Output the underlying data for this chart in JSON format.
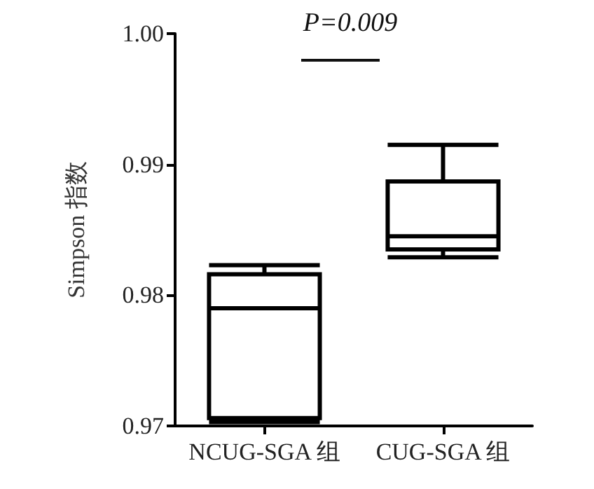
{
  "chart_data": {
    "type": "box",
    "ylabel": "Simpson 指数",
    "categories": [
      "NCUG-SGA 组",
      "CUG-SGA 组"
    ],
    "boxes": [
      {
        "low": 0.9703,
        "q1": 0.9706,
        "median": 0.979,
        "q3": 0.9816,
        "high": 0.9823
      },
      {
        "low": 0.9829,
        "q1": 0.9835,
        "median": 0.9845,
        "q3": 0.9887,
        "high": 0.9915
      }
    ],
    "color": "#000000",
    "ylim": [
      0.97,
      1.0
    ],
    "yticks": [
      0.97,
      0.98,
      0.99,
      {
        "value": 1,
        "label": "1.00"
      }
    ],
    "grid": false,
    "annotations": [
      "P=0.009"
    ]
  }
}
